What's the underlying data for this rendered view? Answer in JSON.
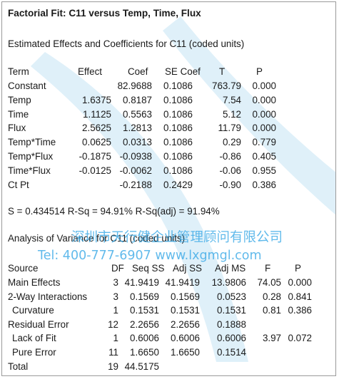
{
  "title": "Factorial Fit: C11 versus Temp, Time, Flux",
  "effects_heading": "Estimated Effects and Coefficients for C11 (coded units)",
  "effects_table": {
    "columns": [
      "Term",
      "Effect",
      "Coef",
      "SE Coef",
      "T",
      "P"
    ],
    "rows": [
      {
        "term": "Constant",
        "effect": "",
        "coef": "82.9688",
        "se": "0.1086",
        "t": "763.79",
        "p": "0.000"
      },
      {
        "term": "Temp",
        "effect": "1.6375",
        "coef": "0.8187",
        "se": "0.1086",
        "t": "7.54",
        "p": "0.000"
      },
      {
        "term": "Time",
        "effect": "1.1125",
        "coef": "0.5563",
        "se": "0.1086",
        "t": "5.12",
        "p": "0.000"
      },
      {
        "term": "Flux",
        "effect": "2.5625",
        "coef": "1.2813",
        "se": "0.1086",
        "t": "11.79",
        "p": "0.000"
      },
      {
        "term": "Temp*Time",
        "effect": "0.0625",
        "coef": "0.0313",
        "se": "0.1086",
        "t": "0.29",
        "p": "0.779"
      },
      {
        "term": "Temp*Flux",
        "effect": "-0.1875",
        "coef": "-0.0938",
        "se": "0.1086",
        "t": "-0.86",
        "p": "0.405"
      },
      {
        "term": "Time*Flux",
        "effect": "-0.0125",
        "coef": "-0.0062",
        "se": "0.1086",
        "t": "-0.06",
        "p": "0.955"
      },
      {
        "term": "Ct Pt",
        "effect": "",
        "coef": "-0.2188",
        "se": "0.2429",
        "t": "-0.90",
        "p": "0.386"
      }
    ]
  },
  "fit_stats": "S = 0.434514   R-Sq = 94.91%   R-Sq(adj) = 91.94%",
  "anova_heading": "Analysis of Variance for C11 (coded units)",
  "anova_table": {
    "columns": [
      "Source",
      "DF",
      "Seq SS",
      "Adj SS",
      "Adj MS",
      "F",
      "P"
    ],
    "rows": [
      {
        "source": "Main Effects",
        "df": "3",
        "seq": "41.9419",
        "adj": "41.9419",
        "ms": "13.9806",
        "f": "74.05",
        "p": "0.000"
      },
      {
        "source": "2-Way Interactions",
        "df": "3",
        "seq": "0.1569",
        "adj": "0.1569",
        "ms": "0.0523",
        "f": "0.28",
        "p": "0.841"
      },
      {
        "source": "Curvature",
        "df": "1",
        "seq": "0.1531",
        "adj": "0.1531",
        "ms": "0.1531",
        "f": "0.81",
        "p": "0.386"
      },
      {
        "source": "Residual Error",
        "df": "12",
        "seq": "2.2656",
        "adj": "2.2656",
        "ms": "0.1888",
        "f": "",
        "p": ""
      },
      {
        "source": "Lack of Fit",
        "df": "1",
        "seq": "0.6006",
        "adj": "0.6006",
        "ms": "0.6006",
        "f": "3.97",
        "p": "0.072"
      },
      {
        "source": "Pure Error",
        "df": "11",
        "seq": "1.6650",
        "adj": "1.6650",
        "ms": "0.1514",
        "f": "",
        "p": ""
      },
      {
        "source": "Total",
        "df": "19",
        "seq": "44.5175",
        "adj": "",
        "ms": "",
        "f": "",
        "p": ""
      }
    ]
  },
  "watermark": {
    "line1": "深圳市天行健企业管理顾问有限公司",
    "line2": "Tel: 400-777-6907 www.lxgmgl.com",
    "color": "#35a7e6"
  }
}
